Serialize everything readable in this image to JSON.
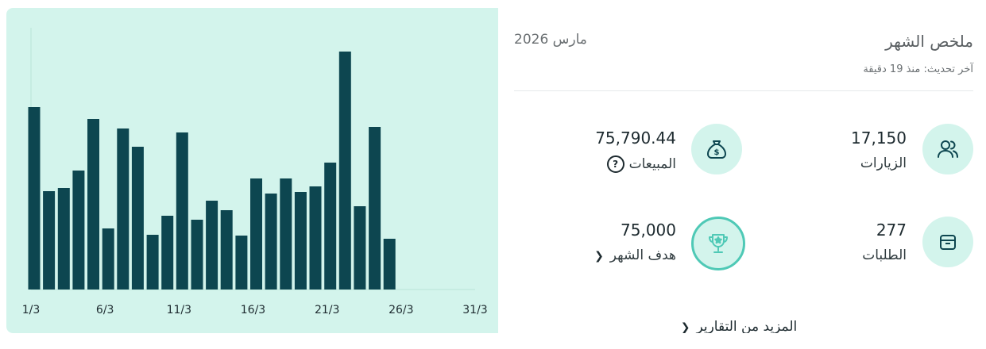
{
  "summary": {
    "title": "ملخص الشهر",
    "month": "مارس 2026",
    "updated": "آخر تحديث: منذ 19 دقيقة",
    "more_reports": "المزيد من التقارير"
  },
  "metrics": {
    "visits": {
      "value": "17,150",
      "label": "الزيارات",
      "icon": "users-icon"
    },
    "sales": {
      "value": "75,790.44",
      "label": "المبيعات",
      "icon": "money-bag-icon"
    },
    "orders": {
      "value": "277",
      "label": "الطلبات",
      "icon": "box-icon"
    },
    "goal": {
      "value": "75,000",
      "label": "هدف الشهر",
      "icon": "trophy-icon"
    }
  },
  "colors": {
    "bar": "#0d4650",
    "panel_bg": "#d3f4ec",
    "accent": "#4fc9b6"
  },
  "chart_data": {
    "type": "bar",
    "x_tick_labels": [
      "1/3",
      "6/3",
      "11/3",
      "16/3",
      "21/3",
      "26/3",
      "31/3"
    ],
    "categories": [
      "1/3",
      "2/3",
      "3/3",
      "4/3",
      "5/3",
      "6/3",
      "7/3",
      "8/3",
      "9/3",
      "10/3",
      "11/3",
      "12/3",
      "13/3",
      "14/3",
      "15/3",
      "16/3",
      "17/3",
      "18/3",
      "19/3",
      "20/3",
      "21/3",
      "22/3",
      "23/3",
      "24/3",
      "25/3",
      "26/3",
      "27/3",
      "28/3",
      "29/3",
      "30/3",
      "31/3"
    ],
    "values": [
      230,
      124,
      128,
      150,
      215,
      77,
      203,
      180,
      69,
      93,
      198,
      88,
      112,
      100,
      68,
      140,
      121,
      140,
      123,
      130,
      160,
      300,
      105,
      205,
      64,
      null,
      null,
      null,
      null,
      null,
      null
    ],
    "ylim": [
      0,
      330
    ],
    "grid": false
  }
}
